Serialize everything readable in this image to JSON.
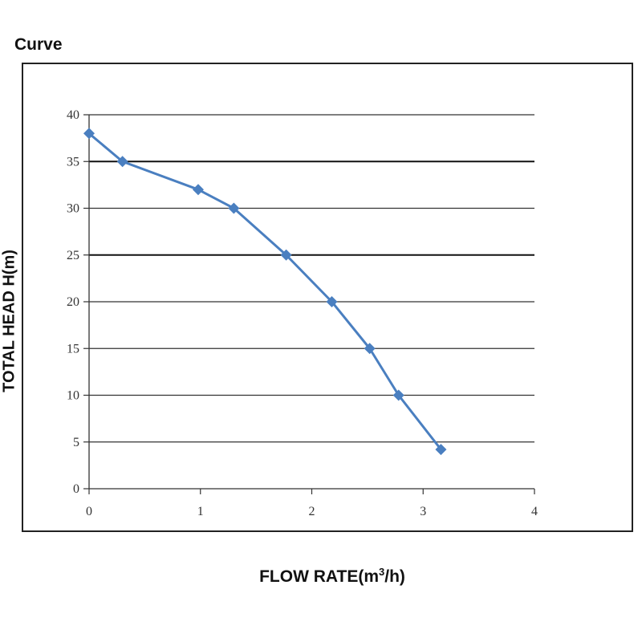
{
  "title": "Curve",
  "chart_data": {
    "type": "line",
    "xlabel_main": "FLOW RATE(m",
    "xlabel_sup": "3",
    "xlabel_tail": "/h)",
    "ylabel": "TOTAL HEAD H(m)",
    "xlim": [
      0,
      4
    ],
    "ylim": [
      0,
      40
    ],
    "xticks": [
      "0",
      "1",
      "2",
      "3",
      "4"
    ],
    "yticks": [
      "0",
      "5",
      "10",
      "15",
      "20",
      "25",
      "30",
      "35",
      "40"
    ],
    "grid": "horizontal",
    "series": [
      {
        "color": "#4a7fc0",
        "x": [
          0,
          0.3,
          0.98,
          1.3,
          1.77,
          2.18,
          2.52,
          2.78,
          3.16
        ],
        "y": [
          38,
          35,
          32,
          30,
          25,
          20,
          15,
          10,
          4.2
        ]
      }
    ]
  }
}
